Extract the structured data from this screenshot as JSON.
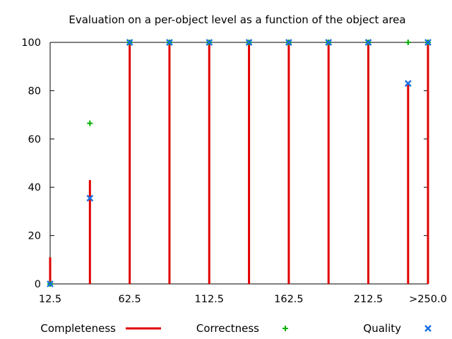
{
  "chart_data": {
    "type": "impulse",
    "title": "Evaluation on a per-object level as a function of the object area",
    "xlabel": "",
    "ylabel": "",
    "x_tick_labels": [
      "12.5",
      "62.5",
      "112.5",
      "162.5",
      "212.5",
      ">250.0"
    ],
    "x_tick_values": [
      12.5,
      62.5,
      112.5,
      162.5,
      212.5,
      250.0
    ],
    "x": [
      12.5,
      37.5,
      62.5,
      87.5,
      112.5,
      137.5,
      162.5,
      187.5,
      212.5,
      237.5,
      250.0
    ],
    "xlim": [
      12.5,
      250.0
    ],
    "y_ticks": [
      0,
      20,
      40,
      60,
      80,
      100
    ],
    "ylim": [
      0,
      100
    ],
    "legend_position": "bottom",
    "series": [
      {
        "name": "Completeness",
        "style": "impulse",
        "color": "#e00000",
        "values": [
          11,
          43,
          100,
          100,
          100,
          100,
          100,
          100,
          100,
          83,
          100
        ]
      },
      {
        "name": "Correctness",
        "style": "plus",
        "color": "#00b000",
        "values": [
          0,
          66.5,
          100,
          100,
          100,
          100,
          100,
          100,
          100,
          100,
          100
        ]
      },
      {
        "name": "Quality",
        "style": "cross",
        "color": "#1a6fe0",
        "values": [
          0,
          35.5,
          100,
          100,
          100,
          100,
          100,
          100,
          100,
          83,
          100
        ]
      }
    ]
  }
}
